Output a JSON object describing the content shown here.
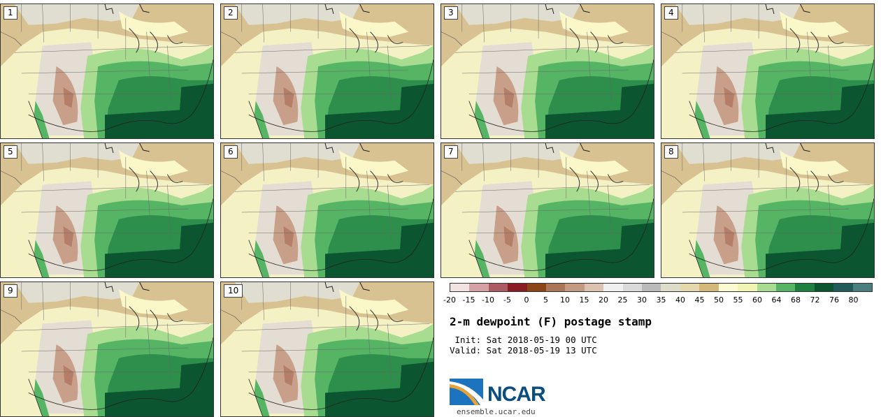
{
  "title": "2-m dewpoint (F) postage stamp",
  "init_line": " Init: Sat 2018-05-19 00 UTC",
  "valid_line": "Valid: Sat 2018-05-19 13 UTC",
  "logo_text": "NCAR",
  "url": "ensemble.ucar.edu",
  "panels": [
    {
      "label": "1"
    },
    {
      "label": "2"
    },
    {
      "label": "3"
    },
    {
      "label": "4"
    },
    {
      "label": "5"
    },
    {
      "label": "6"
    },
    {
      "label": "7"
    },
    {
      "label": "8"
    },
    {
      "label": "9"
    },
    {
      "label": "10"
    }
  ],
  "colorbar": {
    "ticks": [
      "-20",
      "-15",
      "-10",
      "-5",
      "0",
      "5",
      "10",
      "15",
      "20",
      "25",
      "30",
      "35",
      "40",
      "45",
      "50",
      "55",
      "60",
      "64",
      "68",
      "72",
      "76",
      "80"
    ],
    "colors": [
      "#f2e2e0",
      "#d4a2a4",
      "#ad5b63",
      "#8a1c23",
      "#8c4514",
      "#ab7558",
      "#c49a82",
      "#dbc3b0",
      "#f0f0f0",
      "#dadada",
      "#bababa",
      "#dedcc8",
      "#e6d8ad",
      "#d4b87a",
      "#fcfad0",
      "#f0f5b4",
      "#a8dc90",
      "#56b565",
      "#1e8040",
      "#0b5530",
      "#225c5a",
      "#4a7f7f"
    ]
  }
}
